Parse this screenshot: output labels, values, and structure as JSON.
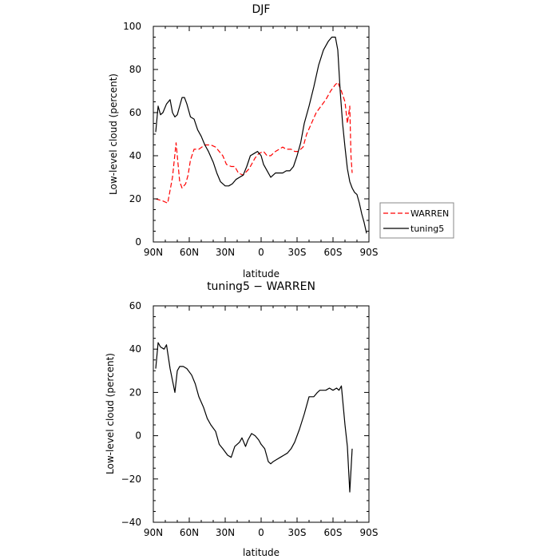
{
  "chart_data": [
    {
      "type": "line",
      "title": "DJF",
      "xlabel": "latitude",
      "ylabel": "Low-level cloud (percent)",
      "xlim": [
        90,
        -90
      ],
      "ylim": [
        0,
        100
      ],
      "xticks": [
        90,
        60,
        30,
        0,
        -30,
        -60,
        -90
      ],
      "xtick_labels": [
        "90N",
        "60N",
        "30N",
        "0",
        "30S",
        "60S",
        "90S"
      ],
      "yticks": [
        0,
        20,
        40,
        60,
        80,
        100
      ],
      "ytick_labels": [
        "0",
        "20",
        "40",
        "60",
        "80",
        "100"
      ],
      "legend": "right",
      "series": [
        {
          "name": "WARREN",
          "color": "#ff0000",
          "style": "dashed",
          "x": [
            88,
            82,
            78,
            74,
            71,
            68,
            66,
            63,
            61,
            59,
            56,
            52,
            47,
            42,
            38,
            35,
            32,
            29,
            25,
            22,
            19,
            15,
            10,
            5,
            2,
            -2,
            -5,
            -8,
            -12,
            -15,
            -18,
            -21,
            -25,
            -28,
            -31,
            -35,
            -38,
            -42,
            -46,
            -50,
            -54,
            -58,
            -62,
            -64,
            -67,
            -70,
            -72,
            -74,
            -75,
            -76
          ],
          "y": [
            20,
            19,
            18,
            30,
            46,
            28,
            25,
            27,
            31,
            38,
            43,
            43,
            45,
            45,
            44,
            42,
            40,
            36,
            35,
            35,
            32,
            31,
            34,
            39,
            41,
            42,
            40,
            40,
            42,
            43,
            44,
            43,
            43,
            42,
            42,
            44,
            50,
            55,
            60,
            63,
            66,
            70,
            73,
            74,
            70,
            65,
            55,
            63,
            40,
            32
          ]
        },
        {
          "name": "tuning5",
          "color": "#000000",
          "style": "solid",
          "x": [
            88,
            86,
            84,
            82,
            79,
            76,
            74,
            72,
            70,
            68,
            66,
            64,
            62,
            59,
            56,
            53,
            50,
            47,
            44,
            40,
            37,
            34,
            30,
            27,
            24,
            21,
            18,
            15,
            12,
            9,
            6,
            3,
            0,
            -2,
            -4,
            -6,
            -8,
            -10,
            -12,
            -15,
            -18,
            -21,
            -24,
            -27,
            -30,
            -33,
            -36,
            -40,
            -44,
            -48,
            -52,
            -56,
            -59,
            -62,
            -64,
            -66,
            -68,
            -70,
            -72,
            -74,
            -76,
            -78,
            -80,
            -82,
            -84,
            -86,
            -88
          ],
          "y": [
            51,
            63,
            59,
            60,
            64,
            66,
            60,
            58,
            59,
            63,
            67,
            67,
            64,
            58,
            57,
            52,
            49,
            45,
            42,
            37,
            32,
            28,
            26,
            26,
            27,
            29,
            30,
            31,
            35,
            40,
            41,
            42,
            40,
            36,
            34,
            32,
            30,
            31,
            32,
            32,
            32,
            33,
            33,
            35,
            40,
            46,
            55,
            63,
            72,
            82,
            89,
            93,
            95,
            95,
            89,
            70,
            55,
            44,
            34,
            28,
            25,
            23,
            22,
            18,
            13,
            9,
            4
          ]
        }
      ]
    },
    {
      "type": "line",
      "title": "tuning5 − WARREN",
      "xlabel": "latitude",
      "ylabel": "Low-level cloud (percent)",
      "xlim": [
        90,
        -90
      ],
      "ylim": [
        -40,
        60
      ],
      "xticks": [
        90,
        60,
        30,
        0,
        -30,
        -60,
        -90
      ],
      "xtick_labels": [
        "90N",
        "60N",
        "30N",
        "0",
        "30S",
        "60S",
        "90S"
      ],
      "yticks": [
        -40,
        -20,
        0,
        20,
        40,
        60
      ],
      "ytick_labels": [
        "−40",
        "−20",
        "0",
        "20",
        "40",
        "60"
      ],
      "series": [
        {
          "color": "#000000",
          "style": "solid",
          "x": [
            88,
            86,
            84,
            81,
            79,
            76,
            72,
            70,
            68,
            65,
            62,
            58,
            55,
            52,
            48,
            45,
            42,
            38,
            35,
            32,
            28,
            25,
            22,
            18,
            16,
            13,
            11,
            8,
            5,
            2,
            0,
            -3,
            -6,
            -8,
            -10,
            -13,
            -16,
            -19,
            -22,
            -25,
            -28,
            -32,
            -36,
            -40,
            -44,
            -47,
            -49,
            -51,
            -54,
            -57,
            -60,
            -63,
            -65,
            -67,
            -70,
            -72,
            -74,
            -76
          ],
          "y": [
            31,
            43,
            41,
            40,
            42,
            31,
            20,
            30,
            32,
            32,
            31,
            28,
            24,
            18,
            13,
            8,
            5,
            2,
            -4,
            -6,
            -9,
            -10,
            -5,
            -3,
            -1,
            -5,
            -2,
            1,
            0,
            -2,
            -4,
            -6,
            -12,
            -13,
            -12,
            -11,
            -10,
            -9,
            -8,
            -6,
            -3,
            3,
            10,
            18,
            18,
            20,
            21,
            21,
            21,
            22,
            21,
            22,
            21,
            23,
            5,
            -5,
            -26,
            -6
          ]
        }
      ]
    }
  ]
}
